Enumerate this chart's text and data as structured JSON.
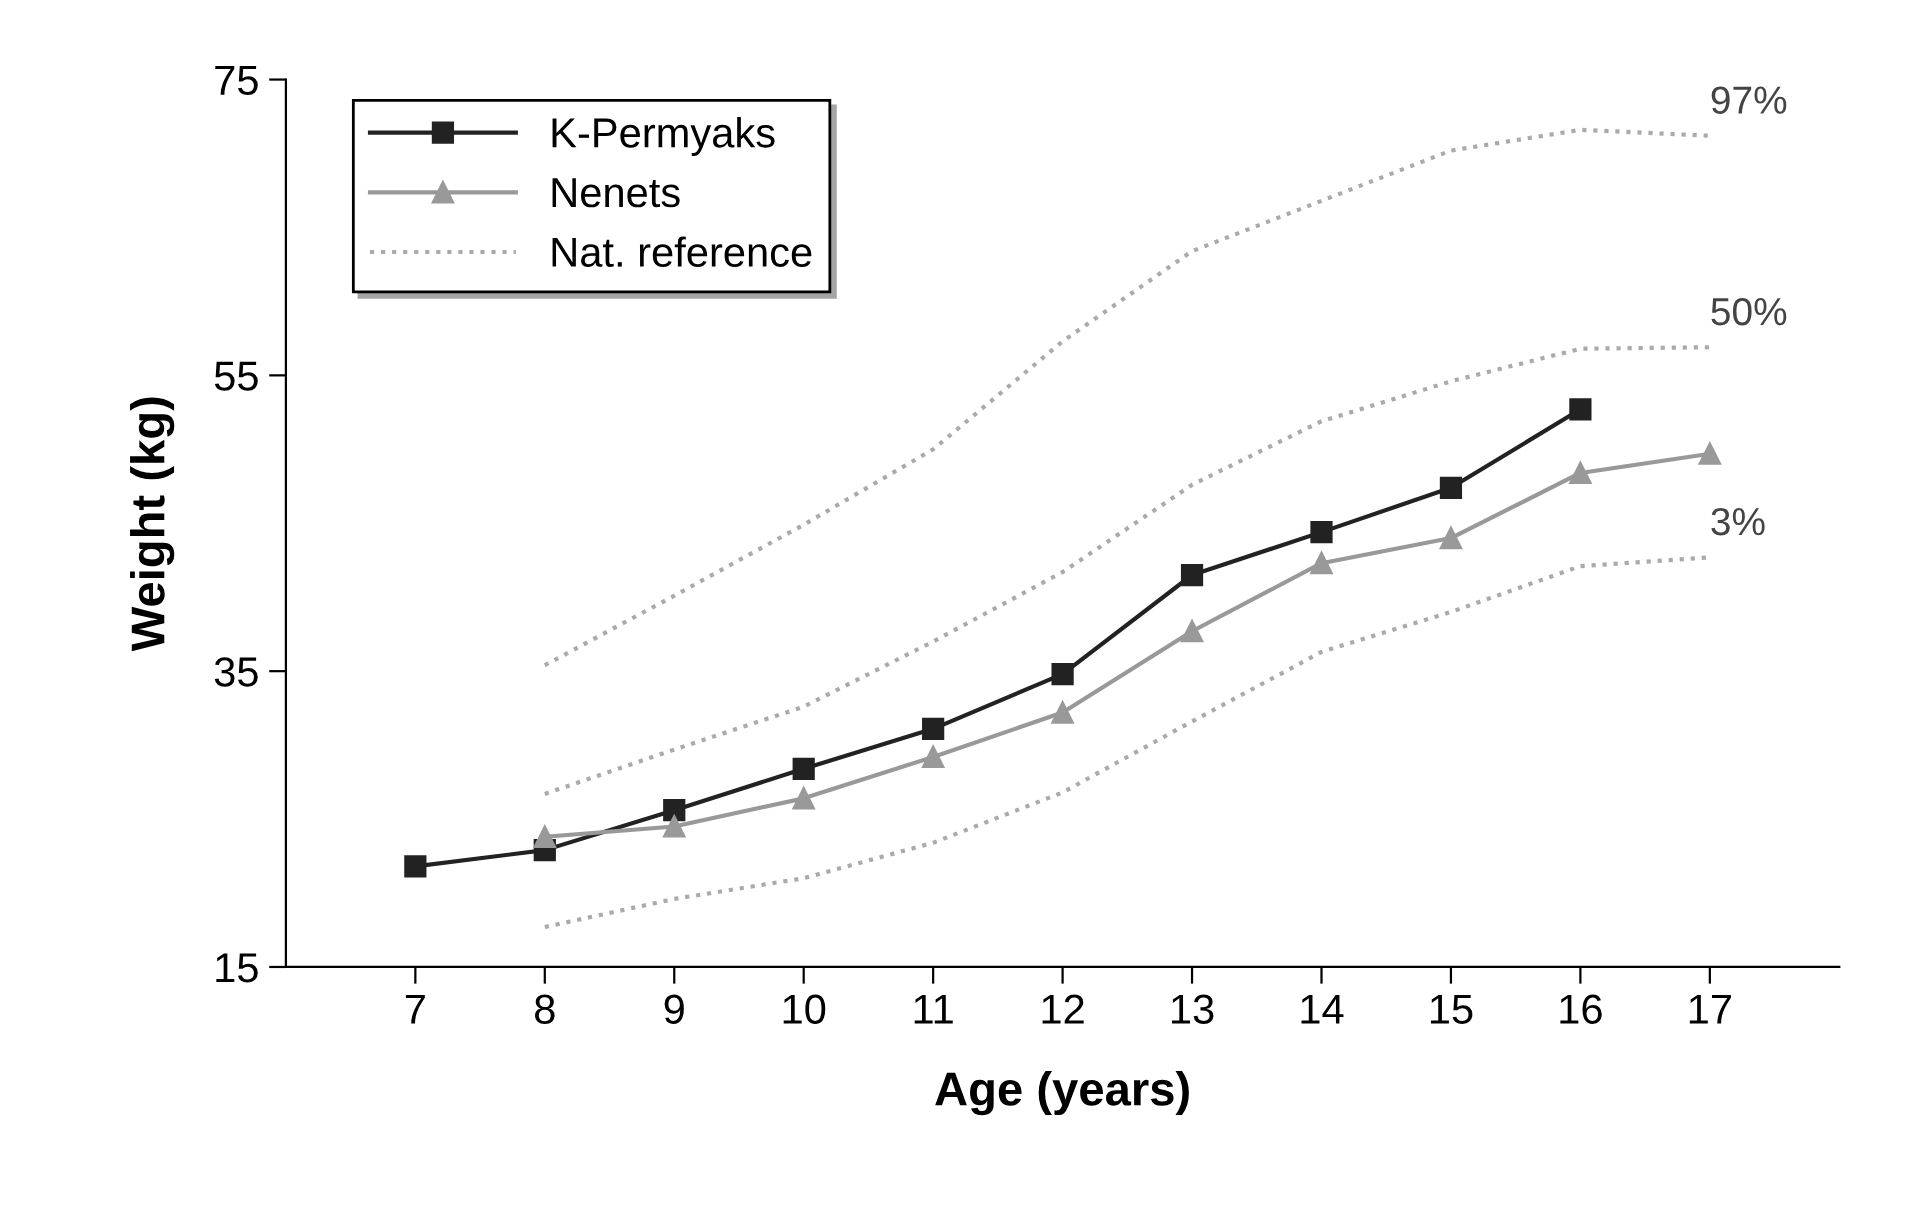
{
  "chart_data": {
    "type": "line",
    "xlabel": "Age (years)",
    "ylabel": "Weight (kg)",
    "xlim": [
      6,
      18
    ],
    "xticks": [
      7,
      8,
      9,
      10,
      11,
      12,
      13,
      14,
      15,
      16,
      17
    ],
    "ylim": [
      15,
      75
    ],
    "yticks": [
      15,
      35,
      55,
      75
    ],
    "grid": false,
    "legend": "top left",
    "series": [
      {
        "name": "K-Permyaks",
        "color": "#222222",
        "marker": "square",
        "line_style": "solid",
        "x": [
          7,
          8,
          9,
          10,
          11,
          12,
          13,
          14,
          15,
          16
        ],
        "values": [
          21.8,
          22.9,
          25.6,
          28.4,
          31.1,
          34.8,
          41.5,
          44.4,
          47.4,
          52.7
        ]
      },
      {
        "name": "Nenets",
        "color": "#999999",
        "marker": "triangle",
        "line_style": "solid",
        "x": [
          8,
          9,
          10,
          11,
          12,
          13,
          14,
          15,
          16,
          17
        ],
        "values": [
          23.8,
          24.5,
          26.4,
          29.2,
          32.2,
          37.7,
          42.3,
          44.0,
          48.4,
          49.7
        ]
      },
      {
        "name": "Nat. reference",
        "color": "#aaaaaa",
        "marker": "none",
        "line_style": "dotted",
        "x": [
          8,
          9,
          10,
          11,
          12,
          13,
          14,
          15,
          16,
          17
        ],
        "values": [
          35.4,
          40.1,
          44.9,
          50.0,
          57.3,
          63.4,
          66.8,
          70.2,
          71.6,
          71.2
        ]
      },
      {
        "color": "#aaaaaa",
        "marker": "none",
        "line_style": "dotted",
        "x": [
          8,
          9,
          10,
          11,
          12,
          13,
          14,
          15,
          16,
          17
        ],
        "values": [
          26.7,
          29.7,
          32.6,
          37.0,
          41.7,
          47.6,
          51.9,
          54.6,
          56.8,
          56.9
        ]
      },
      {
        "color": "#aaaaaa",
        "marker": "none",
        "line_style": "dotted",
        "x": [
          8,
          9,
          10,
          11,
          12,
          13,
          14,
          15,
          16,
          17
        ],
        "values": [
          17.7,
          19.6,
          21.0,
          23.4,
          26.8,
          31.6,
          36.3,
          39.0,
          42.1,
          42.7
        ]
      }
    ],
    "annotations": [
      "97%",
      "50%",
      "3%"
    ]
  }
}
